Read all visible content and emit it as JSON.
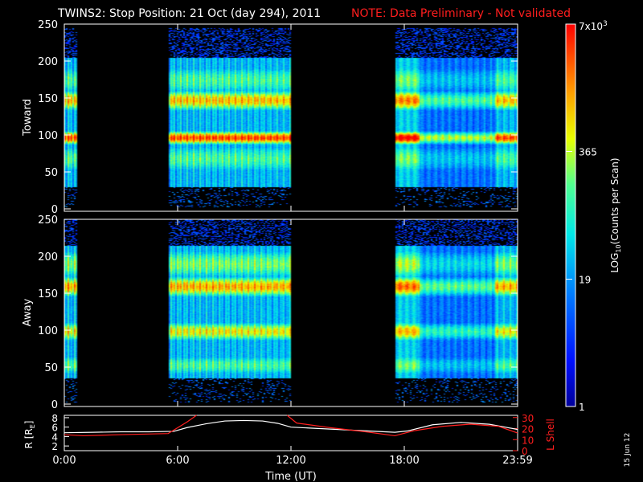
{
  "chart_data": {
    "type": "heatmap",
    "title": "TWINS2: Stop Position: 21 Oct (day 294), 2011",
    "note": "NOTE: Data Preliminary - Not validated",
    "panels": [
      {
        "name": "Toward",
        "ylabel": "Toward",
        "ylim": [
          0,
          250
        ],
        "yticks": [
          "0",
          "50",
          "100",
          "150",
          "200",
          "250"
        ],
        "bands": [
          {
            "center": 148,
            "halfwidth": 16,
            "level": 0.78
          },
          {
            "center": 98,
            "halfwidth": 10,
            "level": 0.92
          },
          {
            "center": 175,
            "halfwidth": 25,
            "level": 0.55
          },
          {
            "center": 70,
            "halfwidth": 25,
            "level": 0.55
          }
        ],
        "data_range": [
          32,
          205
        ]
      },
      {
        "name": "Away",
        "ylabel": "Away",
        "ylim": [
          0,
          250
        ],
        "yticks": [
          "0",
          "50",
          "100",
          "150",
          "200",
          "250"
        ],
        "bands": [
          {
            "center": 160,
            "halfwidth": 16,
            "level": 0.8
          },
          {
            "center": 100,
            "halfwidth": 15,
            "level": 0.72
          },
          {
            "center": 190,
            "halfwidth": 25,
            "level": 0.6
          },
          {
            "center": 55,
            "halfwidth": 18,
            "level": 0.55
          }
        ],
        "data_range": [
          38,
          215
        ]
      }
    ],
    "time_hours": [
      0,
      24
    ],
    "data_intervals_hours": [
      [
        0,
        0.7
      ],
      [
        5.5,
        12.0
      ],
      [
        17.5,
        24.0
      ]
    ],
    "xtick_labels": [
      "0:00",
      "6:00",
      "12:00",
      "18:00",
      "23:59"
    ],
    "xtick_hours": [
      0,
      6,
      12,
      18,
      24
    ],
    "xlabel": "Time (UT)",
    "colorbar": {
      "label_main": "LOG",
      "label_sub": "10",
      "label_rest": "(Counts per Scan)",
      "tick_labels": [
        "1",
        "19",
        "365",
        "7x10"
      ],
      "tick_exp": "3",
      "tick_fractions": [
        0,
        0.333,
        0.667,
        1.0
      ]
    },
    "orbit_panel": {
      "left_label": "R [R",
      "left_label_sub": "E",
      "left_label_end": "]",
      "left_ticks": [
        "2",
        "4",
        "6",
        "8"
      ],
      "left_ylim": [
        1,
        8.5
      ],
      "right_label": "L Shell",
      "right_ticks": [
        "0",
        "10",
        "20",
        "30"
      ],
      "right_ylim": [
        0,
        32
      ],
      "r_series": {
        "name": "R",
        "hours": [
          0,
          1.5,
          3,
          4.5,
          5.8,
          6.5,
          7.5,
          8.5,
          9.5,
          10.5,
          11.3,
          12.0,
          13,
          14.5,
          16,
          17.5,
          18.2,
          19.5,
          21,
          22.5,
          23.2,
          24
        ],
        "values": [
          4.8,
          4.9,
          5.0,
          5.0,
          5.1,
          5.9,
          6.7,
          7.3,
          7.4,
          7.3,
          6.8,
          6.0,
          5.8,
          5.5,
          5.2,
          4.9,
          5.2,
          6.5,
          7.0,
          6.6,
          6.1,
          5.5
        ]
      },
      "l_series": {
        "name": "L Shell",
        "hours": [
          0,
          1,
          3,
          5.5,
          6.5,
          7.0
        ],
        "values": [
          14.5,
          13.5,
          14.5,
          15.5,
          26,
          32
        ],
        "hours2": [
          11.8,
          12.3,
          14,
          16,
          17.5,
          18.5,
          20,
          21.5,
          23,
          24
        ],
        "values2": [
          32,
          25,
          21,
          17,
          13.5,
          18,
          22,
          24,
          22,
          16
        ]
      }
    },
    "colors": {
      "note": "#ff1e1e",
      "lshell": "#ff1e1e",
      "rline": "#ffffff"
    },
    "side_date": "15 Jun 12"
  }
}
